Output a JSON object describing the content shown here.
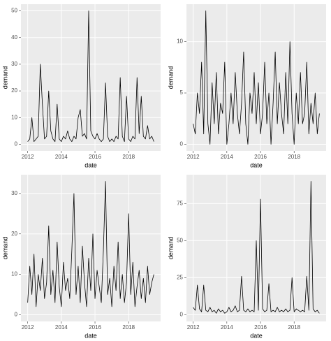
{
  "chart_data": [
    {
      "type": "line",
      "x_label": "date",
      "y_label": "demand",
      "color": "#000000",
      "grid": true,
      "x": [
        2012,
        2012.125,
        2012.25,
        2012.375,
        2012.5,
        2012.625,
        2012.75,
        2012.875,
        2013,
        2013.125,
        2013.25,
        2013.375,
        2013.5,
        2013.625,
        2013.75,
        2013.875,
        2014,
        2014.125,
        2014.25,
        2014.375,
        2014.5,
        2014.625,
        2014.75,
        2014.875,
        2015,
        2015.125,
        2015.25,
        2015.375,
        2015.5,
        2015.625,
        2015.75,
        2015.875,
        2016,
        2016.125,
        2016.25,
        2016.375,
        2016.5,
        2016.625,
        2016.75,
        2016.875,
        2017,
        2017.125,
        2017.25,
        2017.375,
        2017.5,
        2017.625,
        2017.75,
        2017.875,
        2018,
        2018.125,
        2018.25,
        2018.375,
        2018.5,
        2018.625,
        2018.75,
        2018.875,
        2019,
        2019.125,
        2019.25,
        2019.375,
        2019.5
      ],
      "values": [
        1,
        2,
        10,
        1,
        2,
        3,
        30,
        15,
        2,
        3,
        20,
        5,
        2,
        1,
        15,
        2,
        1,
        3,
        2,
        5,
        2,
        1,
        3,
        2,
        10,
        13,
        3,
        4,
        2,
        50,
        5,
        3,
        2,
        4,
        2,
        1,
        2,
        23,
        3,
        1,
        2,
        1,
        3,
        2,
        25,
        3,
        1,
        18,
        2,
        1,
        3,
        2,
        25,
        4,
        18,
        3,
        2,
        7,
        2,
        3,
        1
      ],
      "xlim": [
        2011.6,
        2019.9
      ],
      "xticks": [
        2012,
        2014,
        2016,
        2018
      ],
      "ylim": [
        -2.5,
        52.5
      ],
      "yticks": [
        0,
        10,
        20,
        30,
        40,
        50
      ]
    },
    {
      "type": "line",
      "x_label": "date",
      "y_label": "demand",
      "color": "#000000",
      "grid": true,
      "x": [
        2012,
        2012.125,
        2012.25,
        2012.375,
        2012.5,
        2012.625,
        2012.75,
        2012.875,
        2013,
        2013.125,
        2013.25,
        2013.375,
        2013.5,
        2013.625,
        2013.75,
        2013.875,
        2014,
        2014.125,
        2014.25,
        2014.375,
        2014.5,
        2014.625,
        2014.75,
        2014.875,
        2015,
        2015.125,
        2015.25,
        2015.375,
        2015.5,
        2015.625,
        2015.75,
        2015.875,
        2016,
        2016.125,
        2016.25,
        2016.375,
        2016.5,
        2016.625,
        2016.75,
        2016.875,
        2017,
        2017.125,
        2017.25,
        2017.375,
        2017.5,
        2017.625,
        2017.75,
        2017.875,
        2018,
        2018.125,
        2018.25,
        2018.375,
        2018.5,
        2018.625,
        2018.75,
        2018.875,
        2019,
        2019.125,
        2019.25,
        2019.375,
        2019.5
      ],
      "values": [
        2,
        1,
        5,
        3,
        8,
        1,
        13,
        2,
        0,
        6,
        2,
        7,
        1,
        4,
        3,
        8,
        0,
        2,
        5,
        2,
        7,
        3,
        1,
        4,
        9,
        2,
        0,
        5,
        3,
        7,
        2,
        6,
        1,
        3,
        8,
        2,
        5,
        0,
        4,
        9,
        2,
        6,
        3,
        1,
        7,
        2,
        10,
        3,
        0,
        5,
        2,
        7,
        2,
        3,
        8,
        1,
        4,
        2,
        5,
        1,
        3
      ],
      "xlim": [
        2011.6,
        2019.9
      ],
      "xticks": [
        2012,
        2014,
        2016,
        2018
      ],
      "ylim": [
        -0.65,
        13.65
      ],
      "yticks": [
        0,
        5,
        10
      ]
    },
    {
      "type": "line",
      "x_label": "date",
      "y_label": "demand",
      "color": "#000000",
      "grid": true,
      "x": [
        2012,
        2012.125,
        2012.25,
        2012.375,
        2012.5,
        2012.625,
        2012.75,
        2012.875,
        2013,
        2013.125,
        2013.25,
        2013.375,
        2013.5,
        2013.625,
        2013.75,
        2013.875,
        2014,
        2014.125,
        2014.25,
        2014.375,
        2014.5,
        2014.625,
        2014.75,
        2014.875,
        2015,
        2015.125,
        2015.25,
        2015.375,
        2015.5,
        2015.625,
        2015.75,
        2015.875,
        2016,
        2016.125,
        2016.25,
        2016.375,
        2016.5,
        2016.625,
        2016.75,
        2016.875,
        2017,
        2017.125,
        2017.25,
        2017.375,
        2017.5,
        2017.625,
        2017.75,
        2017.875,
        2018,
        2018.125,
        2018.25,
        2018.375,
        2018.5,
        2018.625,
        2018.75,
        2018.875,
        2019,
        2019.125,
        2019.25,
        2019.375,
        2019.5
      ],
      "values": [
        3,
        12,
        5,
        15,
        2,
        10,
        6,
        14,
        4,
        8,
        22,
        5,
        11,
        3,
        18,
        7,
        2,
        13,
        6,
        9,
        4,
        16,
        30,
        5,
        12,
        3,
        17,
        8,
        2,
        14,
        6,
        20,
        4,
        11,
        7,
        3,
        16,
        33,
        5,
        9,
        2,
        12,
        6,
        18,
        4,
        10,
        3,
        8,
        25,
        5,
        13,
        2,
        7,
        11,
        4,
        9,
        3,
        12,
        5,
        8,
        10
      ],
      "xlim": [
        2011.6,
        2019.9
      ],
      "xticks": [
        2012,
        2014,
        2016,
        2018
      ],
      "ylim": [
        -1.65,
        34.65
      ],
      "yticks": [
        0,
        10,
        20,
        30
      ]
    },
    {
      "type": "line",
      "x_label": "date",
      "y_label": "demand",
      "color": "#000000",
      "grid": true,
      "x": [
        2012,
        2012.125,
        2012.25,
        2012.375,
        2012.5,
        2012.625,
        2012.75,
        2012.875,
        2013,
        2013.125,
        2013.25,
        2013.375,
        2013.5,
        2013.625,
        2013.75,
        2013.875,
        2014,
        2014.125,
        2014.25,
        2014.375,
        2014.5,
        2014.625,
        2014.75,
        2014.875,
        2015,
        2015.125,
        2015.25,
        2015.375,
        2015.5,
        2015.625,
        2015.75,
        2015.875,
        2016,
        2016.125,
        2016.25,
        2016.375,
        2016.5,
        2016.625,
        2016.75,
        2016.875,
        2017,
        2017.125,
        2017.25,
        2017.375,
        2017.5,
        2017.625,
        2017.75,
        2017.875,
        2018,
        2018.125,
        2018.25,
        2018.375,
        2018.5,
        2018.625,
        2018.75,
        2018.875,
        2019,
        2019.125,
        2019.25,
        2019.375,
        2019.5
      ],
      "values": [
        5,
        3,
        20,
        4,
        2,
        20,
        3,
        2,
        5,
        2,
        3,
        1,
        4,
        2,
        3,
        1,
        2,
        5,
        2,
        3,
        6,
        2,
        3,
        26,
        3,
        2,
        4,
        2,
        3,
        2,
        50,
        3,
        78,
        4,
        2,
        3,
        21,
        2,
        3,
        2,
        5,
        2,
        3,
        2,
        4,
        2,
        3,
        25,
        2,
        4,
        3,
        2,
        3,
        2,
        26,
        3,
        90,
        4,
        2,
        3,
        1
      ],
      "xlim": [
        2011.6,
        2019.9
      ],
      "xticks": [
        2012,
        2014,
        2016,
        2018
      ],
      "ylim": [
        -4.5,
        94.5
      ],
      "yticks": [
        0,
        25,
        50,
        75
      ]
    }
  ]
}
